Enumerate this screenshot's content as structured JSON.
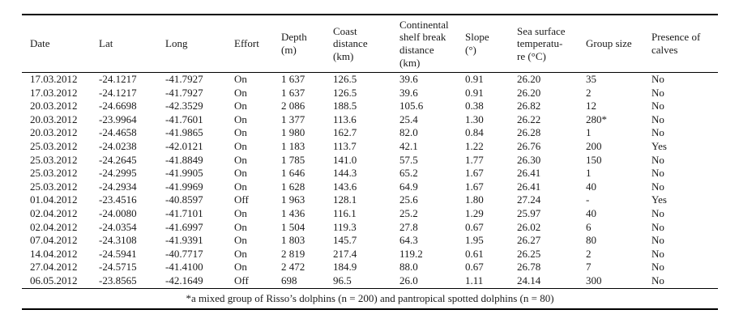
{
  "table": {
    "columns": [
      {
        "key": "date",
        "label": "Date"
      },
      {
        "key": "lat",
        "label": "Lat"
      },
      {
        "key": "long",
        "label": "Long"
      },
      {
        "key": "effort",
        "label": "Effort"
      },
      {
        "key": "depth_m",
        "label": "Depth\n(m)"
      },
      {
        "key": "coast_distance_km",
        "label": "Coast\ndistance\n(km)"
      },
      {
        "key": "shelf_break_distance_km",
        "label": "Continental\nshelf break\ndistance\n(km)"
      },
      {
        "key": "slope_deg",
        "label": "Slope\n(°)"
      },
      {
        "key": "sst_c",
        "label": "Sea surface\ntemperatu-\nre (°C)"
      },
      {
        "key": "group_size",
        "label": "Group size"
      },
      {
        "key": "presence_of_calves",
        "label": "Presence of\ncalves"
      }
    ],
    "rows": [
      [
        "17.03.2012",
        "-24.1217",
        "-41.7927",
        "On",
        "1 637",
        "126.5",
        "39.6",
        "0.91",
        "26.20",
        "35",
        "No"
      ],
      [
        "17.03.2012",
        "-24.1217",
        "-41.7927",
        "On",
        "1 637",
        "126.5",
        "39.6",
        "0.91",
        "26.20",
        "2",
        "No"
      ],
      [
        "20.03.2012",
        "-24.6698",
        "-42.3529",
        "On",
        "2 086",
        "188.5",
        "105.6",
        "0.38",
        "26.82",
        "12",
        "No"
      ],
      [
        "20.03.2012",
        "-23.9964",
        "-41.7601",
        "On",
        "1 377",
        "113.6",
        "25.4",
        "1.30",
        "26.22",
        "280*",
        "No"
      ],
      [
        "20.03.2012",
        "-24.4658",
        "-41.9865",
        "On",
        "1 980",
        "162.7",
        "82.0",
        "0.84",
        "26.28",
        "1",
        "No"
      ],
      [
        "25.03.2012",
        "-24.0238",
        "-42.0121",
        "On",
        "1 183",
        "113.7",
        "42.1",
        "1.22",
        "26.76",
        "200",
        "Yes"
      ],
      [
        "25.03.2012",
        "-24.2645",
        "-41.8849",
        "On",
        "1 785",
        "141.0",
        "57.5",
        "1.77",
        "26.30",
        "150",
        "No"
      ],
      [
        "25.03.2012",
        "-24.2995",
        "-41.9905",
        "On",
        "1 646",
        "144.3",
        "65.2",
        "1.67",
        "26.41",
        "1",
        "No"
      ],
      [
        "25.03.2012",
        "-24.2934",
        "-41.9969",
        "On",
        "1 628",
        "143.6",
        "64.9",
        "1.67",
        "26.41",
        "40",
        "No"
      ],
      [
        "01.04.2012",
        "-23.4516",
        "-40.8597",
        "Off",
        "1 963",
        "128.1",
        "25.6",
        "1.80",
        "27.24",
        "-",
        "Yes"
      ],
      [
        "02.04.2012",
        "-24.0080",
        "-41.7101",
        "On",
        "1 436",
        "116.1",
        "25.2",
        "1.29",
        "25.97",
        "40",
        "No"
      ],
      [
        "02.04.2012",
        "-24.0354",
        "-41.6997",
        "On",
        "1 504",
        "119.3",
        "27.8",
        "0.67",
        "26.02",
        "6",
        "No"
      ],
      [
        "07.04.2012",
        "-24.3108",
        "-41.9391",
        "On",
        "1 803",
        "145.7",
        "64.3",
        "1.95",
        "26.27",
        "80",
        "No"
      ],
      [
        "14.04.2012",
        "-24.5941",
        "-40.7717",
        "On",
        "2 819",
        "217.4",
        "119.2",
        "0.61",
        "26.25",
        "2",
        "No"
      ],
      [
        "27.04.2012",
        "-24.5715",
        "-41.4100",
        "On",
        "2 472",
        "184.9",
        "88.0",
        "0.67",
        "26.78",
        "7",
        "No"
      ],
      [
        "06.05.2012",
        "-23.8565",
        "-42.1649",
        "Off",
        "698",
        "96.5",
        "26.0",
        "1.11",
        "24.14",
        "300",
        "No"
      ]
    ],
    "footnote": "*a mixed group of Risso’s dolphins (n = 200) and pantropical spotted dolphins (n = 80)"
  },
  "colors": {
    "text": "#1a1a1a",
    "rule": "#000000",
    "background": "#ffffff"
  }
}
